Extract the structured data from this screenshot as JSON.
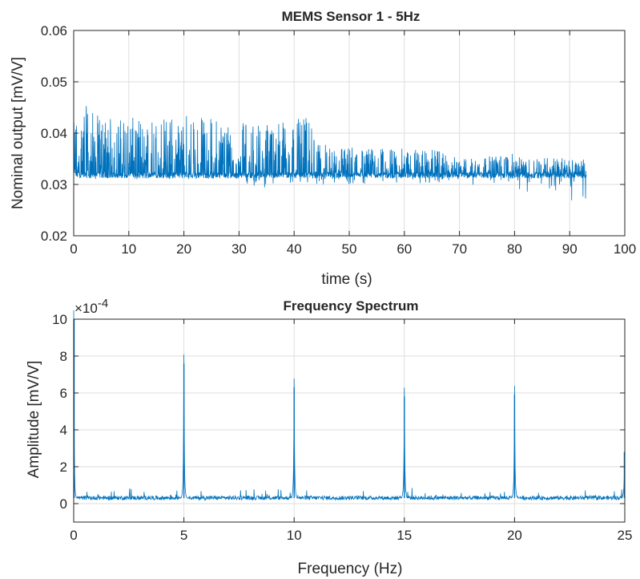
{
  "colors": {
    "series": "#0072BD",
    "grid": "#dedede",
    "axis": "#262626",
    "background": "#ffffff"
  },
  "chart_data": [
    {
      "type": "line",
      "title": "MEMS Sensor 1 - 5Hz",
      "xlabel": "time (s)",
      "ylabel": "Nominal output [mV/V]",
      "xlim": [
        0,
        100
      ],
      "ylim": [
        0.02,
        0.06
      ],
      "xticks": [
        0,
        10,
        20,
        30,
        40,
        50,
        60,
        70,
        80,
        90,
        100
      ],
      "xtick_labels": [
        "0",
        "10",
        "20",
        "30",
        "40",
        "50",
        "60",
        "70",
        "80",
        "90",
        "100"
      ],
      "yticks": [
        0.02,
        0.03,
        0.04,
        0.05,
        0.06
      ],
      "ytick_labels": [
        "0.02",
        "0.03",
        "0.04",
        "0.05",
        "0.06"
      ],
      "grid": true,
      "series": [
        {
          "x_range": [
            0,
            93
          ],
          "baseline": 0.0317,
          "upper_envelope": [
            [
              0,
              0.042
            ],
            [
              1.5,
              0.046
            ],
            [
              5,
              0.043
            ],
            [
              15,
              0.043
            ],
            [
              20,
              0.044
            ],
            [
              30,
              0.042
            ],
            [
              43,
              0.043
            ],
            [
              45,
              0.038
            ],
            [
              55,
              0.037
            ],
            [
              65,
              0.037
            ],
            [
              70,
              0.035
            ],
            [
              80,
              0.036
            ],
            [
              90,
              0.035
            ],
            [
              93,
              0.035
            ]
          ],
          "lower_envelope": [
            [
              0,
              0.031
            ],
            [
              30,
              0.031
            ],
            [
              33,
              0.029
            ],
            [
              40,
              0.03
            ],
            [
              50,
              0.03
            ],
            [
              60,
              0.03
            ],
            [
              70,
              0.03
            ],
            [
              80,
              0.029
            ],
            [
              85,
              0.028
            ],
            [
              90,
              0.026
            ],
            [
              93,
              0.027
            ]
          ]
        }
      ]
    },
    {
      "type": "line",
      "title": "Frequency Spectrum",
      "xlabel": "Frequency (Hz)",
      "ylabel": "Amplitude [mV/V]",
      "y_exponent_label": "×10",
      "y_exponent_power": "-4",
      "xlim": [
        0,
        25
      ],
      "ylim": [
        -1,
        10
      ],
      "xticks": [
        0,
        5,
        10,
        15,
        20,
        25
      ],
      "xtick_labels": [
        "0",
        "5",
        "10",
        "15",
        "20",
        "25"
      ],
      "yticks": [
        0,
        2,
        4,
        6,
        8,
        10
      ],
      "ytick_labels": [
        "0",
        "2",
        "4",
        "6",
        "8",
        "10"
      ],
      "grid": true,
      "series": [
        {
          "noise_floor": 0.3,
          "peaks": [
            {
              "x": 0,
              "y": 10
            },
            {
              "x": 5,
              "y": 7.6
            },
            {
              "x": 10,
              "y": 6.3
            },
            {
              "x": 15,
              "y": 5.8
            },
            {
              "x": 20,
              "y": 5.9
            },
            {
              "x": 25,
              "y": 2.8
            }
          ]
        }
      ]
    }
  ]
}
